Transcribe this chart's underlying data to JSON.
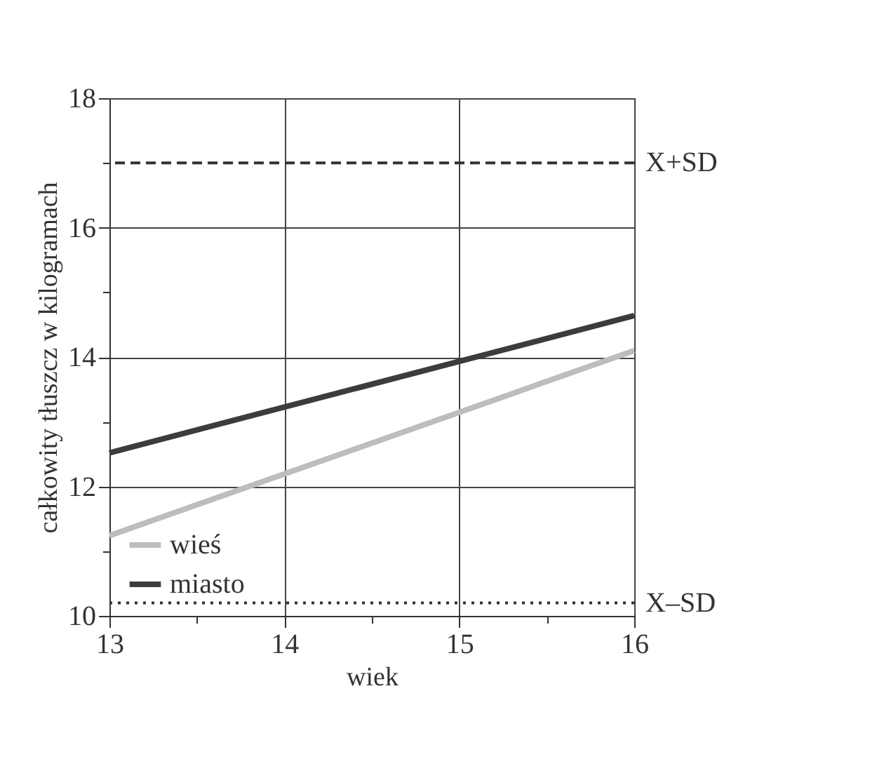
{
  "chart_data": {
    "type": "line",
    "xlabel": "wiek",
    "ylabel": "całkowity tłuszcz w kilogramach",
    "x": [
      13,
      16
    ],
    "series": [
      {
        "name": "wieś",
        "color": "#bdbdbd",
        "values": [
          11.24,
          14.1
        ]
      },
      {
        "name": "miasto",
        "color": "#3c3c3c",
        "values": [
          12.52,
          14.64
        ]
      }
    ],
    "xlim": [
      13,
      16
    ],
    "xticks": [
      13,
      {
        "value": 13.5,
        "label": null
      },
      14,
      {
        "value": 14.5,
        "label": null
      },
      15,
      {
        "value": 15.5,
        "label": null
      },
      16
    ],
    "ylim": [
      10,
      18
    ],
    "yticks": [
      10,
      {
        "value": 11,
        "label": null
      },
      12,
      {
        "value": 13,
        "label": null
      },
      14,
      {
        "value": 15,
        "label": null
      },
      16,
      {
        "value": 17,
        "label": null
      },
      18
    ],
    "ref_lines": [
      {
        "axis": "y",
        "value": 17,
        "label": "X+SD",
        "line_style": "dashed",
        "color": "#333333"
      },
      {
        "axis": "y",
        "value": 10.2,
        "label": "X–SD",
        "line_style": "dotted",
        "color": "#333333"
      }
    ],
    "grid": true,
    "legend": "bottom left",
    "line_style": "solid",
    "marker": "none"
  }
}
